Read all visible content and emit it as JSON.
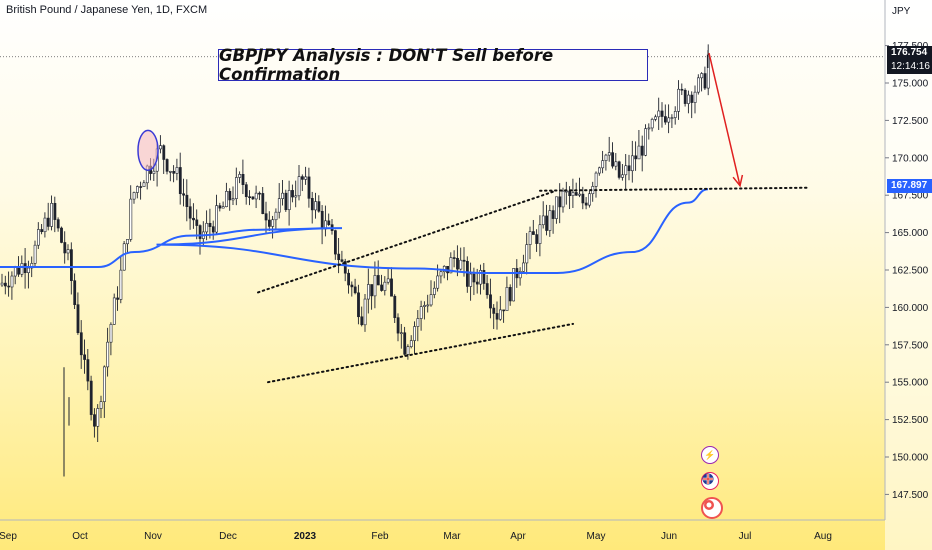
{
  "header": {
    "symbol_text": "British Pound / Japanese Yen, 1D, FXCM"
  },
  "annotation": {
    "title": "GBPJPY Analysis : DON'T Sell before Confirmation"
  },
  "price_axis": {
    "currency": "JPY"
  },
  "last_price": {
    "value": "176.754",
    "countdown": "12:14:16"
  },
  "ma_price": {
    "value": "167.897"
  },
  "colors": {
    "up": "#26a69a",
    "down": "#ef5350",
    "ma": "#2962ff",
    "arrow": "#e02020",
    "annotation_border": "#2b2bb8"
  },
  "icons": [
    "lightning-icon",
    "flag-icon",
    "target-icon"
  ],
  "chart_data": {
    "type": "candlestick",
    "title": "GBPJPY Analysis : DON'T Sell before Confirmation",
    "instrument": "British Pound / Japanese Yen",
    "timeframe": "1D",
    "source": "FXCM",
    "y_ticks": [
      147.5,
      150.0,
      152.5,
      155.0,
      157.5,
      160.0,
      162.5,
      165.0,
      167.5,
      170.0,
      172.5,
      175.0,
      177.5
    ],
    "y_tick_labels": [
      "147.500",
      "150.000",
      "152.500",
      "155.000",
      "157.500",
      "160.000",
      "162.500",
      "165.000",
      "167.500",
      "170.000",
      "172.500",
      "175.000",
      "177.500"
    ],
    "x_tick_labels": [
      "Sep",
      "Oct",
      "Nov",
      "Dec",
      "2023",
      "Feb",
      "Mar",
      "Apr",
      "May",
      "Jun",
      "Jul",
      "Aug"
    ],
    "ylim": [
      145.5,
      179.0
    ],
    "current_price": 176.754,
    "moving_average_last": 167.897,
    "price_path": [
      {
        "date": "Sep",
        "price": 161.5
      },
      {
        "date": "Sep",
        "price": 163.5
      },
      {
        "date": "Sep",
        "price": 166.5
      },
      {
        "date": "Sep",
        "price": 163.0
      },
      {
        "date": "Oct",
        "price": 156.0
      },
      {
        "date": "Oct",
        "price": 152.0
      },
      {
        "date": "Oct",
        "price": 158.0
      },
      {
        "date": "Oct",
        "price": 162.0
      },
      {
        "date": "Oct",
        "price": 167.5
      },
      {
        "date": "Oct",
        "price": 169.0
      },
      {
        "date": "Nov",
        "price": 170.5
      },
      {
        "date": "Nov",
        "price": 168.5
      },
      {
        "date": "Nov",
        "price": 164.5
      },
      {
        "date": "Nov",
        "price": 166.0
      },
      {
        "date": "Dec",
        "price": 168.5
      },
      {
        "date": "Dec",
        "price": 166.0
      },
      {
        "date": "Dec",
        "price": 168.5
      },
      {
        "date": "Dec",
        "price": 164.5
      },
      {
        "date": "Dec",
        "price": 159.5
      },
      {
        "date": "2023",
        "price": 161.0
      },
      {
        "date": "2023",
        "price": 156.0
      },
      {
        "date": "2023",
        "price": 160.5
      },
      {
        "date": "2023",
        "price": 157.0
      },
      {
        "date": "Feb",
        "price": 161.5
      },
      {
        "date": "Feb",
        "price": 157.5
      },
      {
        "date": "Feb",
        "price": 160.0
      },
      {
        "date": "Feb",
        "price": 162.0
      },
      {
        "date": "Mar",
        "price": 163.5
      },
      {
        "date": "Mar",
        "price": 161.5
      },
      {
        "date": "Mar",
        "price": 162.5
      },
      {
        "date": "Mar",
        "price": 159.5
      },
      {
        "date": "Mar",
        "price": 161.0
      },
      {
        "date": "Apr",
        "price": 164.0
      },
      {
        "date": "Apr",
        "price": 165.5
      },
      {
        "date": "Apr",
        "price": 167.5
      },
      {
        "date": "Apr",
        "price": 167.0
      },
      {
        "date": "May",
        "price": 170.5
      },
      {
        "date": "May",
        "price": 168.5
      },
      {
        "date": "May",
        "price": 170.5
      },
      {
        "date": "May",
        "price": 172.5
      },
      {
        "date": "Jun",
        "price": 174.0
      },
      {
        "date": "Jun",
        "price": 175.0
      },
      {
        "date": "Jun",
        "price": 176.75
      }
    ],
    "moving_average_path": [
      {
        "date": "Sep",
        "price": 162.7
      },
      {
        "date": "Oct",
        "price": 162.7
      },
      {
        "date": "Oct",
        "price": 163.7
      },
      {
        "date": "Nov",
        "price": 164.8
      },
      {
        "date": "Dec",
        "price": 165.2
      },
      {
        "date": "Dec",
        "price": 165.3
      },
      {
        "date": "2023",
        "price": 164.2
      },
      {
        "date": "Feb",
        "price": 162.6
      },
      {
        "date": "Mar",
        "price": 162.3
      },
      {
        "date": "Apr",
        "price": 162.3
      },
      {
        "date": "May",
        "price": 163.7
      },
      {
        "date": "Jun",
        "price": 167.0
      },
      {
        "date": "Jun",
        "price": 167.9
      }
    ],
    "trendlines": [
      {
        "name": "channel-upper",
        "style": "dotted",
        "start": {
          "date": "Dec",
          "price": 161.0
        },
        "end": {
          "date": "Apr",
          "price": 167.8
        }
      },
      {
        "name": "channel-lower",
        "style": "dotted",
        "start": {
          "date": "2023",
          "price": 155.0
        },
        "end": {
          "date": "Apr",
          "price": 158.9
        }
      },
      {
        "name": "support",
        "style": "dotted",
        "start": {
          "date": "Apr",
          "price": 167.8
        },
        "end": {
          "date": "Jul",
          "price": 168.0
        }
      }
    ],
    "arrow": {
      "from": {
        "date": "Jun",
        "price": 177.0
      },
      "to": {
        "date": "Jun",
        "price": 168.0
      }
    },
    "highlight_circle": {
      "date": "Nov",
      "price": 170.5
    }
  }
}
